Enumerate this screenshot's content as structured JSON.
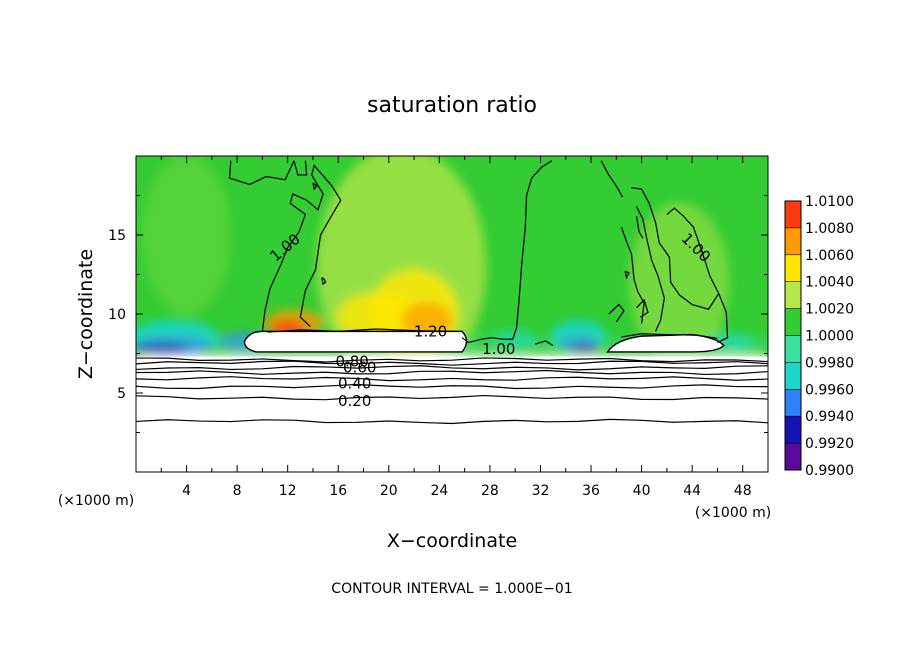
{
  "chart_data": {
    "type": "heatmap",
    "title": "saturation ratio",
    "xlabel": "X−coordinate",
    "ylabel": "Z−coordinate",
    "x_unit": "(×1000 m)",
    "x_unit_right": "(×1000 m)",
    "xlim": [
      0,
      50
    ],
    "ylim": [
      0,
      20
    ],
    "x_ticks": [
      4,
      8,
      12,
      16,
      20,
      24,
      28,
      32,
      36,
      40,
      44,
      48
    ],
    "y_ticks": [
      5,
      10,
      15
    ],
    "colorbar": {
      "levels": [
        "0.9900",
        "0.9920",
        "0.9940",
        "0.9960",
        "0.9980",
        "1.0000",
        "1.0020",
        "1.0040",
        "1.0060",
        "1.0080",
        "1.0100"
      ],
      "colors": [
        "#5a0a9a",
        "#1414b4",
        "#2f7fff",
        "#1ad7c8",
        "#3ce0a0",
        "#33cc33",
        "#b5e64a",
        "#ffe600",
        "#ff9a00",
        "#ff3a10",
        "#f5a8a8"
      ]
    },
    "contour_labels": [
      "1.00",
      "1.20",
      "1.00",
      "1.00",
      "0.80",
      "0.60",
      "0.40",
      "0.20"
    ],
    "contour_interval_text": "CONTOUR INTERVAL = 1.000E−01",
    "background_value": "1.0000",
    "grid": false
  }
}
